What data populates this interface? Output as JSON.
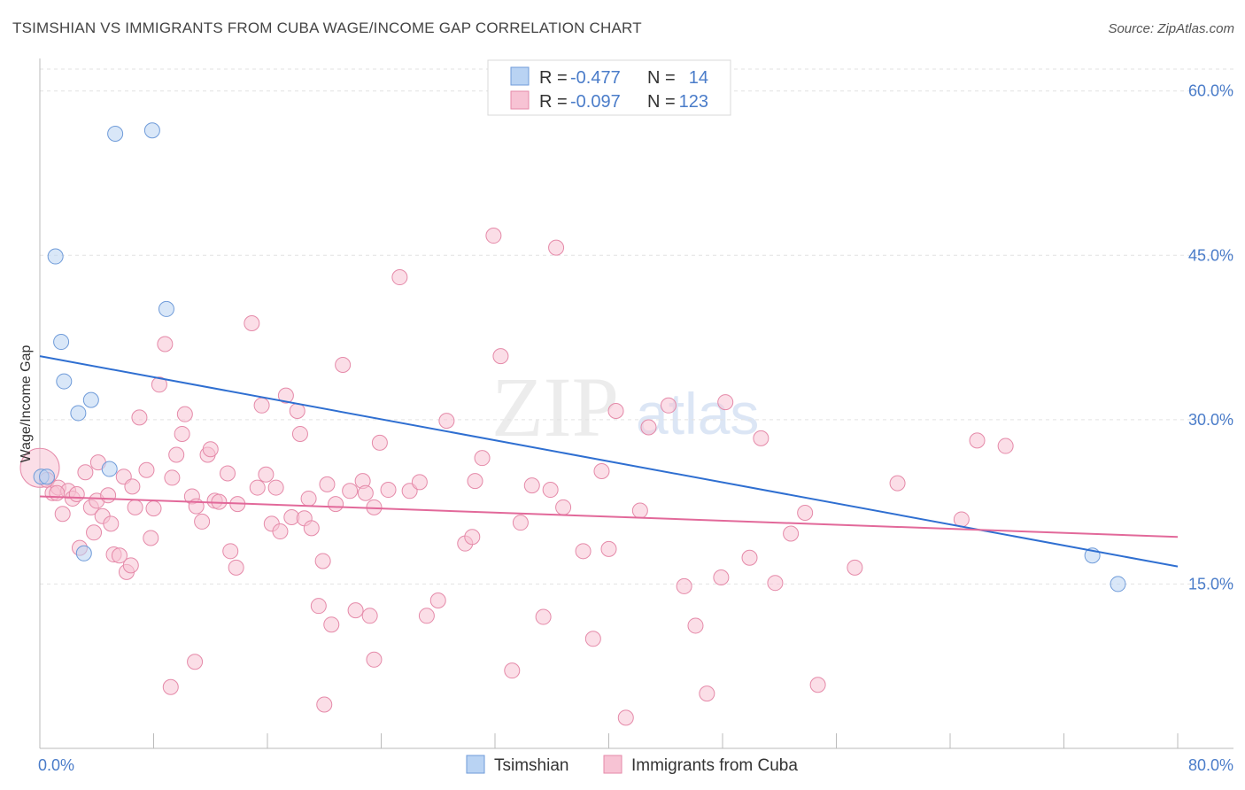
{
  "header": {
    "title": "TSIMSHIAN VS IMMIGRANTS FROM CUBA WAGE/INCOME GAP CORRELATION CHART",
    "source": "Source: ZipAtlas.com"
  },
  "watermark": {
    "text_zip": "ZIP",
    "text_atlas": "atlas"
  },
  "colors": {
    "tsimshian_fill": "#b9d3f3",
    "tsimshian_stroke": "#6f9bd9",
    "tsimshian_line": "#2f6fd1",
    "cuba_fill": "#f7c3d4",
    "cuba_stroke": "#e58aa9",
    "cuba_line": "#e2699a",
    "label_blue": "#4a7cc9"
  },
  "legend_top": [
    {
      "r_label": "R =",
      "r_value": "-0.477",
      "n_label": "N =",
      "n_value": "14"
    },
    {
      "r_label": "R =",
      "r_value": "-0.097",
      "n_label": "N =",
      "n_value": "123"
    }
  ],
  "legend_bottom": [
    "Tsimshian",
    "Immigrants from Cuba"
  ],
  "chart_data": {
    "type": "scatter",
    "ylabel": "Wage/Income Gap",
    "xlim": [
      0,
      80
    ],
    "ylim": [
      0,
      62
    ],
    "x_tick_labels": [
      "0.0%",
      "80.0%"
    ],
    "y_ticks": [
      15,
      30,
      45,
      60
    ],
    "y_tick_labels": [
      "15.0%",
      "30.0%",
      "45.0%",
      "60.0%"
    ],
    "grid": "horizontal dashed",
    "legend_placement": "top-center",
    "series": [
      {
        "name": "Tsimshian",
        "trend": [
          [
            0,
            35.8
          ],
          [
            80,
            16.6
          ]
        ],
        "points": [
          [
            0.1,
            24.8
          ],
          [
            5.3,
            56.1
          ],
          [
            7.9,
            56.4
          ],
          [
            1.1,
            44.9
          ],
          [
            8.9,
            40.1
          ],
          [
            1.5,
            37.1
          ],
          [
            1.7,
            33.5
          ],
          [
            3.6,
            31.8
          ],
          [
            2.7,
            30.6
          ],
          [
            4.9,
            25.5
          ],
          [
            0.5,
            24.8
          ],
          [
            3.1,
            17.8
          ],
          [
            74.0,
            17.6
          ],
          [
            75.8,
            15.0
          ]
        ]
      },
      {
        "name": "Immigrants from Cuba",
        "trend": [
          [
            0,
            23.0
          ],
          [
            80,
            19.3
          ]
        ],
        "points": [
          [
            0.0,
            25.6
          ],
          [
            0.5,
            24.5
          ],
          [
            0.9,
            23.3
          ],
          [
            1.3,
            23.8
          ],
          [
            1.6,
            21.4
          ],
          [
            2.0,
            23.5
          ],
          [
            2.3,
            22.8
          ],
          [
            2.6,
            23.2
          ],
          [
            2.8,
            18.3
          ],
          [
            3.2,
            25.2
          ],
          [
            3.6,
            22.0
          ],
          [
            3.8,
            19.7
          ],
          [
            4.0,
            22.6
          ],
          [
            4.4,
            21.2
          ],
          [
            4.8,
            23.1
          ],
          [
            5.0,
            20.5
          ],
          [
            5.2,
            17.7
          ],
          [
            5.6,
            17.6
          ],
          [
            5.9,
            24.8
          ],
          [
            6.1,
            16.1
          ],
          [
            6.4,
            16.7
          ],
          [
            6.7,
            22.0
          ],
          [
            7.0,
            30.2
          ],
          [
            7.5,
            25.4
          ],
          [
            7.8,
            19.2
          ],
          [
            8.0,
            21.9
          ],
          [
            8.4,
            33.2
          ],
          [
            8.8,
            36.9
          ],
          [
            9.3,
            24.7
          ],
          [
            9.6,
            26.8
          ],
          [
            10.0,
            28.7
          ],
          [
            10.2,
            30.5
          ],
          [
            10.7,
            23.0
          ],
          [
            11.0,
            22.1
          ],
          [
            11.4,
            20.7
          ],
          [
            11.8,
            26.8
          ],
          [
            12.0,
            27.3
          ],
          [
            12.3,
            22.6
          ],
          [
            12.6,
            22.5
          ],
          [
            13.2,
            25.1
          ],
          [
            13.4,
            18.0
          ],
          [
            13.8,
            16.5
          ],
          [
            13.9,
            22.3
          ],
          [
            14.9,
            38.8
          ],
          [
            15.3,
            23.8
          ],
          [
            15.6,
            31.3
          ],
          [
            15.9,
            25.0
          ],
          [
            16.3,
            20.5
          ],
          [
            16.6,
            23.8
          ],
          [
            16.9,
            19.8
          ],
          [
            17.3,
            32.2
          ],
          [
            17.7,
            21.1
          ],
          [
            18.1,
            30.8
          ],
          [
            18.3,
            28.7
          ],
          [
            18.6,
            21.0
          ],
          [
            18.9,
            22.8
          ],
          [
            19.1,
            20.1
          ],
          [
            19.6,
            13.0
          ],
          [
            19.9,
            17.1
          ],
          [
            20.2,
            24.1
          ],
          [
            20.5,
            11.3
          ],
          [
            20.8,
            22.3
          ],
          [
            21.3,
            35.0
          ],
          [
            21.8,
            23.5
          ],
          [
            22.2,
            12.6
          ],
          [
            22.7,
            24.4
          ],
          [
            22.9,
            23.3
          ],
          [
            23.2,
            12.1
          ],
          [
            23.5,
            22.0
          ],
          [
            23.9,
            27.9
          ],
          [
            24.5,
            23.6
          ],
          [
            25.3,
            43.0
          ],
          [
            26.0,
            23.5
          ],
          [
            26.7,
            24.3
          ],
          [
            27.2,
            12.1
          ],
          [
            28.0,
            13.5
          ],
          [
            28.6,
            29.9
          ],
          [
            29.9,
            18.7
          ],
          [
            30.4,
            19.3
          ],
          [
            30.6,
            24.4
          ],
          [
            31.1,
            26.5
          ],
          [
            31.9,
            46.8
          ],
          [
            32.4,
            35.8
          ],
          [
            33.2,
            7.1
          ],
          [
            33.8,
            20.6
          ],
          [
            34.6,
            24.0
          ],
          [
            35.4,
            12.0
          ],
          [
            35.9,
            23.6
          ],
          [
            36.3,
            45.7
          ],
          [
            36.8,
            22.0
          ],
          [
            38.2,
            18.0
          ],
          [
            38.9,
            10.0
          ],
          [
            39.5,
            25.3
          ],
          [
            40.0,
            18.2
          ],
          [
            40.5,
            30.8
          ],
          [
            41.2,
            2.8
          ],
          [
            42.2,
            21.7
          ],
          [
            42.8,
            29.3
          ],
          [
            44.2,
            31.3
          ],
          [
            45.3,
            14.8
          ],
          [
            46.1,
            11.2
          ],
          [
            46.9,
            5.0
          ],
          [
            47.9,
            15.6
          ],
          [
            48.2,
            31.6
          ],
          [
            49.9,
            17.4
          ],
          [
            50.7,
            28.3
          ],
          [
            51.7,
            15.1
          ],
          [
            52.8,
            19.6
          ],
          [
            53.8,
            21.5
          ],
          [
            54.7,
            5.8
          ],
          [
            57.3,
            16.5
          ],
          [
            60.3,
            24.2
          ],
          [
            64.8,
            20.9
          ],
          [
            65.9,
            28.1
          ],
          [
            67.9,
            27.6
          ],
          [
            20.0,
            4.0
          ],
          [
            23.5,
            8.1
          ],
          [
            10.9,
            7.9
          ],
          [
            9.2,
            5.6
          ],
          [
            1.2,
            23.3
          ],
          [
            4.1,
            26.1
          ],
          [
            6.5,
            23.9
          ]
        ]
      }
    ]
  }
}
